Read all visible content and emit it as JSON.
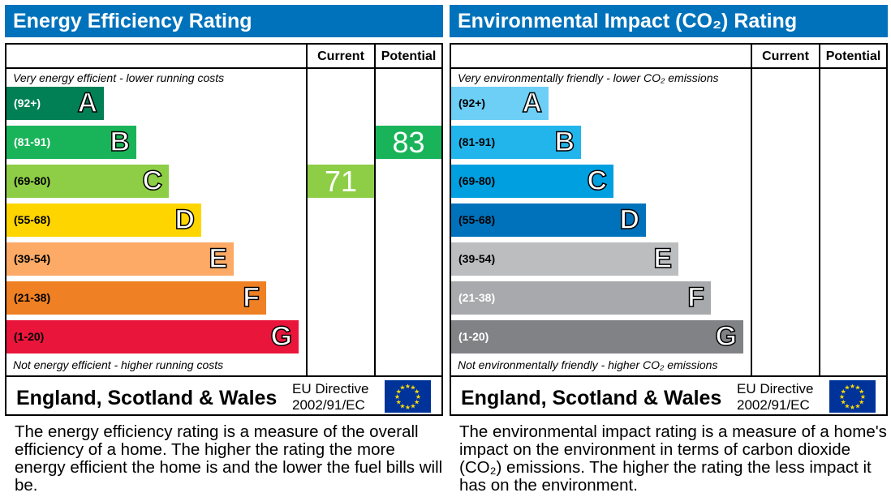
{
  "panels": [
    {
      "title": "Energy Efficiency Rating",
      "col_current": "Current",
      "col_potential": "Potential",
      "top_note": "Very energy efficient - lower running costs",
      "bottom_note": "Not energy efficient - higher running costs",
      "region": "England, Scotland & Wales",
      "directive_1": "EU Directive",
      "directive_2": "2002/91/EC",
      "description": "The energy efficiency rating is a measure of the overall efficiency of a home. The higher the rating the more energy efficient the home is and the lower the fuel bills will be.",
      "bands": [
        {
          "range": "(92+)",
          "letter": "A",
          "color": "#008054",
          "text": "#ffffff"
        },
        {
          "range": "(81-91)",
          "letter": "B",
          "color": "#19b459",
          "text": "#ffffff"
        },
        {
          "range": "(69-80)",
          "letter": "C",
          "color": "#8dce46",
          "text": "#000000"
        },
        {
          "range": "(55-68)",
          "letter": "D",
          "color": "#ffd500",
          "text": "#000000"
        },
        {
          "range": "(39-54)",
          "letter": "E",
          "color": "#fcaa65",
          "text": "#000000"
        },
        {
          "range": "(21-38)",
          "letter": "F",
          "color": "#ef8023",
          "text": "#000000"
        },
        {
          "range": "(1-20)",
          "letter": "G",
          "color": "#e9153b",
          "text": "#000000"
        }
      ],
      "current": {
        "value": "71",
        "band": "C"
      },
      "potential": {
        "value": "83",
        "band": "B"
      }
    },
    {
      "title": "Environmental Impact (CO₂) Rating",
      "col_current": "Current",
      "col_potential": "Potential",
      "top_note": "Very environmentally friendly - lower CO₂ emissions",
      "bottom_note": "Not environmentally friendly - higher CO₂ emissions",
      "region": "England, Scotland & Wales",
      "directive_1": "EU Directive",
      "directive_2": "2002/91/EC",
      "description": "The environmental impact rating is a measure of a home's impact on the environment in terms of carbon dioxide (CO₂) emissions. The higher the rating the less impact it has on the environment.",
      "bands": [
        {
          "range": "(92+)",
          "letter": "A",
          "color": "#6dcff6",
          "text": "#000000"
        },
        {
          "range": "(81-91)",
          "letter": "B",
          "color": "#22b5ec",
          "text": "#000000"
        },
        {
          "range": "(69-80)",
          "letter": "C",
          "color": "#009fe0",
          "text": "#000000"
        },
        {
          "range": "(55-68)",
          "letter": "D",
          "color": "#0072bb",
          "text": "#000000"
        },
        {
          "range": "(39-54)",
          "letter": "E",
          "color": "#bbbdbf",
          "text": "#000000"
        },
        {
          "range": "(21-38)",
          "letter": "F",
          "color": "#a7a9ac",
          "text": "#ffffff"
        },
        {
          "range": "(1-20)",
          "letter": "G",
          "color": "#808285",
          "text": "#ffffff"
        }
      ]
    }
  ],
  "chart_data": {
    "type": "table",
    "energy": {
      "current": 71,
      "potential": 83
    },
    "environmental": {
      "current": null,
      "potential": null
    }
  }
}
